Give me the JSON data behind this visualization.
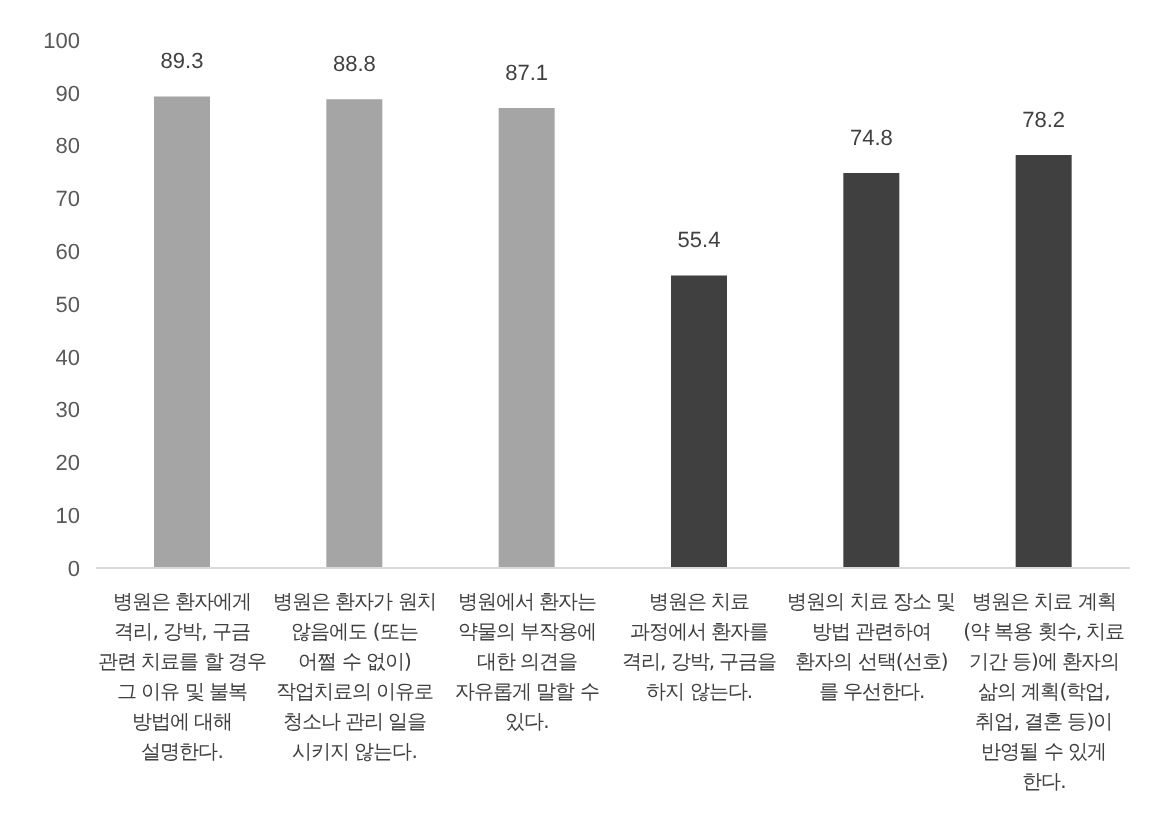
{
  "chart_data": {
    "type": "bar",
    "categories": [
      "병원은 환자에게 격리, 강박, 구금 관련 치료를 할 경우 그 이유 및 불복 방법에 대해 설명한다.",
      "병원은 환자가 원치 않음에도 (또는 어쩔 수 없이) 작업치료의 이유로 청소나 관리 일을 시키지 않는다.",
      "병원에서 환자는 약물의 부작용에 대한 의견을 자유롭게 말할 수 있다.",
      "병원은 치료 과정에서 환자를 격리, 강박, 구금을 하지 않는다.",
      "병원의 치료 장소 및 방법 관련하여 환자의 선택(선호)를 우선한다.",
      "병원은 치료 계획(약 복용 횟수, 치료 기간 등)에 환자의 삶의 계획(학업, 취업, 결혼 등)이 반영될 수 있게 한다."
    ],
    "values": [
      89.3,
      88.8,
      87.1,
      55.4,
      74.8,
      78.2
    ],
    "colors": [
      "#a5a5a5",
      "#a5a5a5",
      "#a5a5a5",
      "#404040",
      "#404040",
      "#404040"
    ],
    "ylim": [
      0,
      100
    ],
    "yticks": [
      0,
      10,
      20,
      30,
      40,
      50,
      60,
      70,
      80,
      90,
      100
    ],
    "data_labels": true
  }
}
